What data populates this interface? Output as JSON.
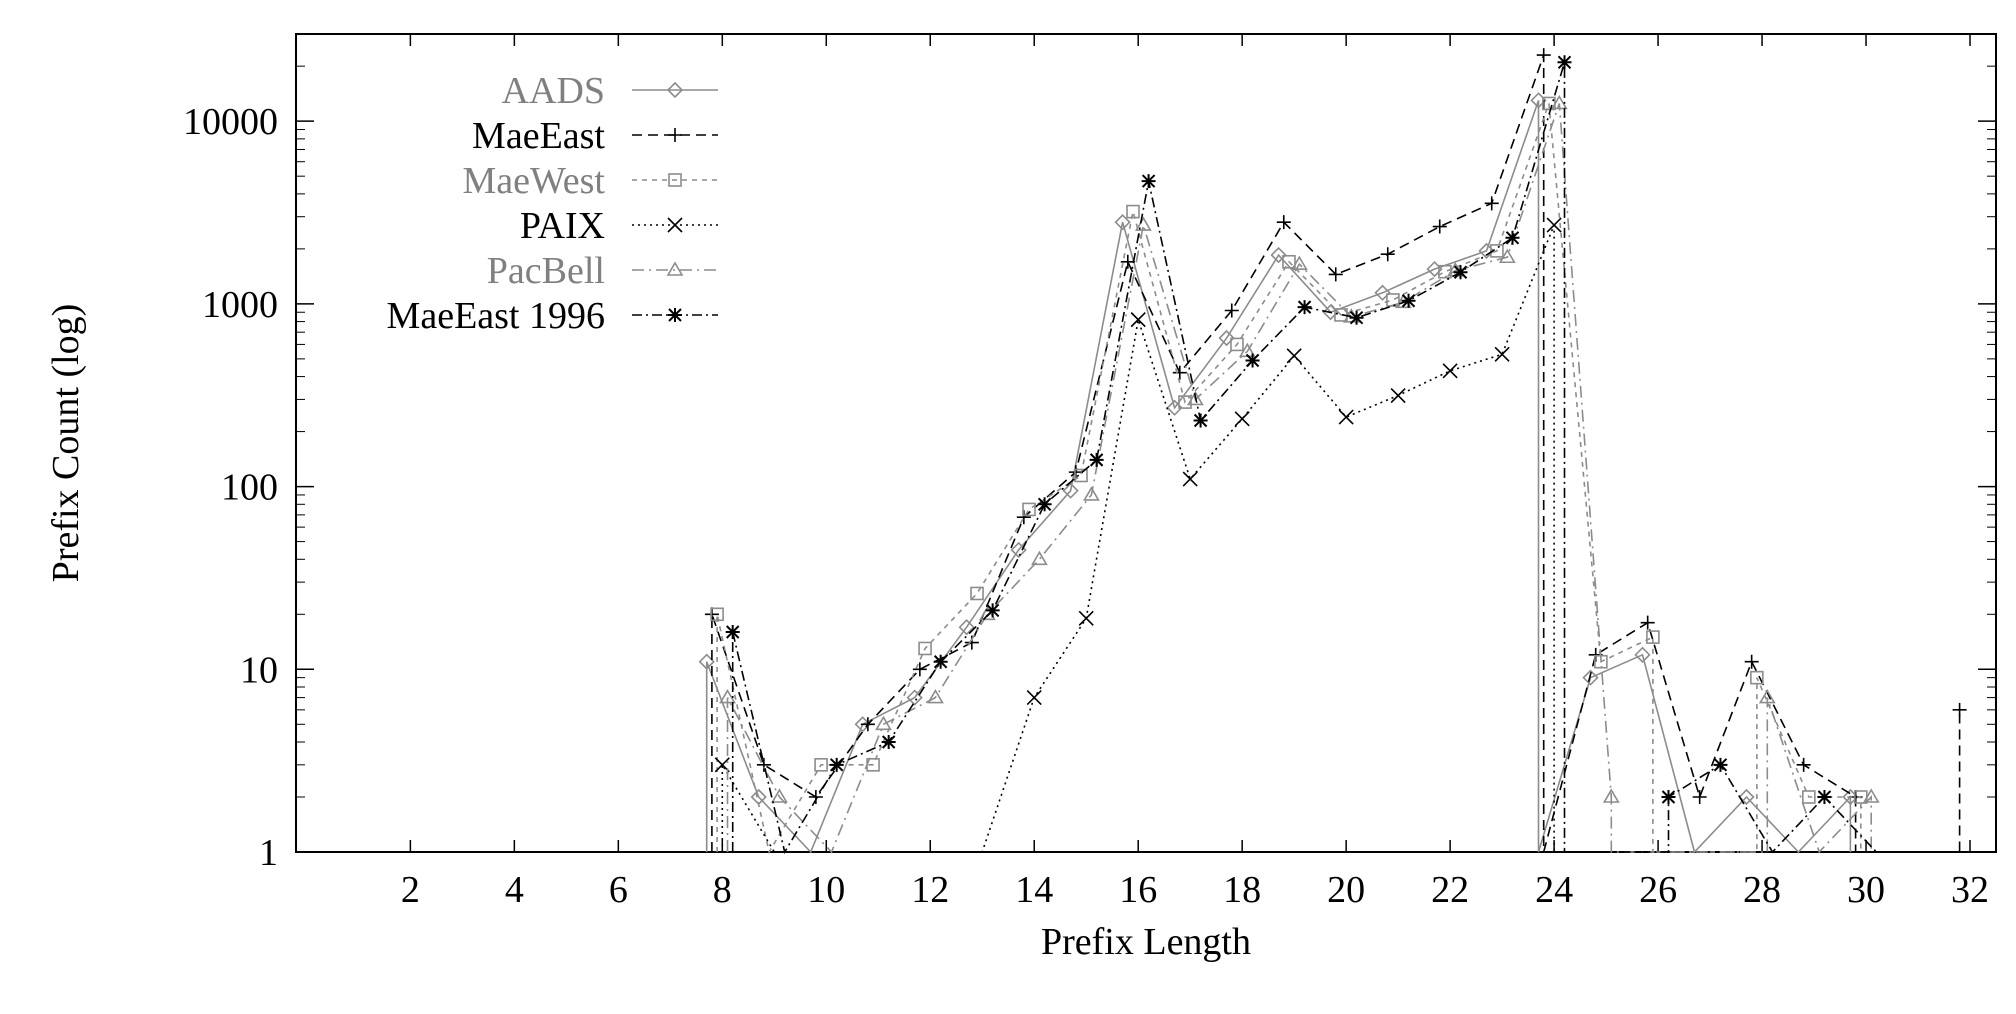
{
  "chart_data": {
    "type": "line",
    "title": "",
    "xlabel": "Prefix Length",
    "ylabel": "Prefix Count (log)",
    "yscale": "log",
    "xlim": [
      -0.2,
      32.5
    ],
    "ylim": [
      1,
      30000
    ],
    "x_ticks": [
      2,
      4,
      6,
      8,
      10,
      12,
      14,
      16,
      18,
      20,
      22,
      24,
      26,
      28,
      30,
      32
    ],
    "y_ticks": [
      1,
      10,
      100,
      1000,
      10000
    ],
    "grid": false,
    "legend_position": "top-left",
    "series": [
      {
        "name": "AADS",
        "color": "#8c8c8c",
        "dash": "",
        "marker": "diamond",
        "points": [
          [
            7.7,
            1
          ],
          [
            7.7,
            11
          ],
          [
            8.7,
            2
          ],
          [
            9.7,
            1
          ],
          [
            10.7,
            5
          ],
          [
            11.7,
            7
          ],
          [
            12.7,
            17
          ],
          [
            13.7,
            45
          ],
          [
            14.7,
            95
          ],
          [
            15.7,
            2800
          ],
          [
            16.7,
            270
          ],
          [
            17.7,
            650
          ],
          [
            18.7,
            1850
          ],
          [
            19.7,
            900
          ],
          [
            20.7,
            1150
          ],
          [
            21.7,
            1550
          ],
          [
            22.7,
            1950
          ],
          [
            23.7,
            13000
          ],
          [
            23.7,
            1
          ],
          [
            24.7,
            9
          ],
          [
            25.7,
            12
          ],
          [
            26.7,
            1
          ],
          [
            27.7,
            2
          ],
          [
            28.7,
            1
          ],
          [
            29.7,
            2
          ],
          [
            29.7,
            1
          ]
        ]
      },
      {
        "name": "MaeEast",
        "color": "#000000",
        "dash": "10,6",
        "marker": "plus",
        "points": [
          [
            7.8,
            1
          ],
          [
            7.8,
            20
          ],
          [
            8.8,
            3
          ],
          [
            9.8,
            2
          ],
          [
            10.8,
            5
          ],
          [
            11.8,
            10
          ],
          [
            12.8,
            14
          ],
          [
            13.8,
            68
          ],
          [
            14.8,
            120
          ],
          [
            15.8,
            1700
          ],
          [
            16.8,
            420
          ],
          [
            17.8,
            920
          ],
          [
            18.8,
            2800
          ],
          [
            19.8,
            1450
          ],
          [
            20.8,
            1870
          ],
          [
            21.8,
            2650
          ],
          [
            22.8,
            3550
          ],
          [
            23.8,
            23000
          ],
          [
            23.8,
            1
          ],
          [
            24.8,
            12
          ],
          [
            25.8,
            18
          ],
          [
            26.8,
            2
          ],
          [
            27.8,
            11
          ],
          [
            28.8,
            3
          ],
          [
            29.8,
            2
          ],
          [
            29.8,
            1
          ],
          [
            31.8,
            1
          ],
          [
            31.8,
            6
          ]
        ]
      },
      {
        "name": "MaeWest",
        "color": "#8c8c8c",
        "dash": "5,5",
        "marker": "square",
        "points": [
          [
            7.9,
            1
          ],
          [
            7.9,
            20
          ],
          [
            8.9,
            1
          ],
          [
            9.9,
            3
          ],
          [
            10.9,
            3
          ],
          [
            11.9,
            13
          ],
          [
            12.9,
            26
          ],
          [
            13.9,
            75
          ],
          [
            14.9,
            115
          ],
          [
            15.9,
            3200
          ],
          [
            16.9,
            290
          ],
          [
            17.9,
            600
          ],
          [
            18.9,
            1700
          ],
          [
            19.9,
            870
          ],
          [
            20.9,
            1050
          ],
          [
            21.9,
            1500
          ],
          [
            22.9,
            1950
          ],
          [
            23.9,
            12500
          ],
          [
            24.9,
            11
          ],
          [
            25.9,
            15
          ],
          [
            25.9,
            1
          ],
          [
            27.9,
            1
          ],
          [
            27.9,
            9
          ],
          [
            28.9,
            2
          ],
          [
            29.9,
            2
          ],
          [
            29.9,
            1
          ]
        ]
      },
      {
        "name": "PAIX",
        "color": "#000000",
        "dash": "2,4",
        "marker": "x",
        "points": [
          [
            8,
            1
          ],
          [
            8,
            3
          ],
          [
            9,
            1
          ],
          [
            13,
            1
          ],
          [
            14,
            7
          ],
          [
            15,
            19
          ],
          [
            16,
            820
          ],
          [
            17,
            110
          ],
          [
            18,
            235
          ],
          [
            19,
            520
          ],
          [
            20,
            240
          ],
          [
            21,
            315
          ],
          [
            22,
            430
          ],
          [
            23,
            530
          ],
          [
            24,
            2700
          ],
          [
            24,
            1
          ]
        ]
      },
      {
        "name": "PacBell",
        "color": "#8c8c8c",
        "dash": "12,5,2,5",
        "marker": "triangle",
        "points": [
          [
            8.1,
            1
          ],
          [
            8.1,
            7
          ],
          [
            9.1,
            2
          ],
          [
            10.1,
            1
          ],
          [
            11.1,
            5
          ],
          [
            12.1,
            7
          ],
          [
            13.1,
            20
          ],
          [
            14.1,
            40
          ],
          [
            15.1,
            90
          ],
          [
            16.1,
            2700
          ],
          [
            17.1,
            300
          ],
          [
            18.1,
            550
          ],
          [
            19.1,
            1650
          ],
          [
            20.1,
            850
          ],
          [
            21.1,
            1020
          ],
          [
            22.1,
            1520
          ],
          [
            23.1,
            1800
          ],
          [
            24.1,
            12500
          ],
          [
            25.1,
            2
          ],
          [
            25.1,
            1
          ],
          [
            28.1,
            1
          ],
          [
            28.1,
            7
          ],
          [
            29.1,
            1
          ],
          [
            30.1,
            2
          ],
          [
            30.1,
            1
          ]
        ]
      },
      {
        "name": "MaeEast 1996",
        "color": "#000000",
        "dash": "10,4,2,4",
        "marker": "star",
        "points": [
          [
            8.2,
            1
          ],
          [
            8.2,
            16
          ],
          [
            9.2,
            1
          ],
          [
            10.2,
            3
          ],
          [
            11.2,
            4
          ],
          [
            12.2,
            11
          ],
          [
            13.2,
            21
          ],
          [
            14.2,
            80
          ],
          [
            15.2,
            140
          ],
          [
            16.2,
            4700
          ],
          [
            17.2,
            230
          ],
          [
            18.2,
            490
          ],
          [
            19.2,
            960
          ],
          [
            20.2,
            840
          ],
          [
            21.2,
            1040
          ],
          [
            22.2,
            1490
          ],
          [
            23.2,
            2300
          ],
          [
            24.2,
            21000
          ],
          [
            24.2,
            1
          ],
          [
            26.2,
            1
          ],
          [
            26.2,
            2
          ],
          [
            27.2,
            3
          ],
          [
            28.2,
            1
          ],
          [
            29.2,
            2
          ],
          [
            30.2,
            1
          ],
          [
            32.2,
            1
          ]
        ]
      }
    ]
  }
}
